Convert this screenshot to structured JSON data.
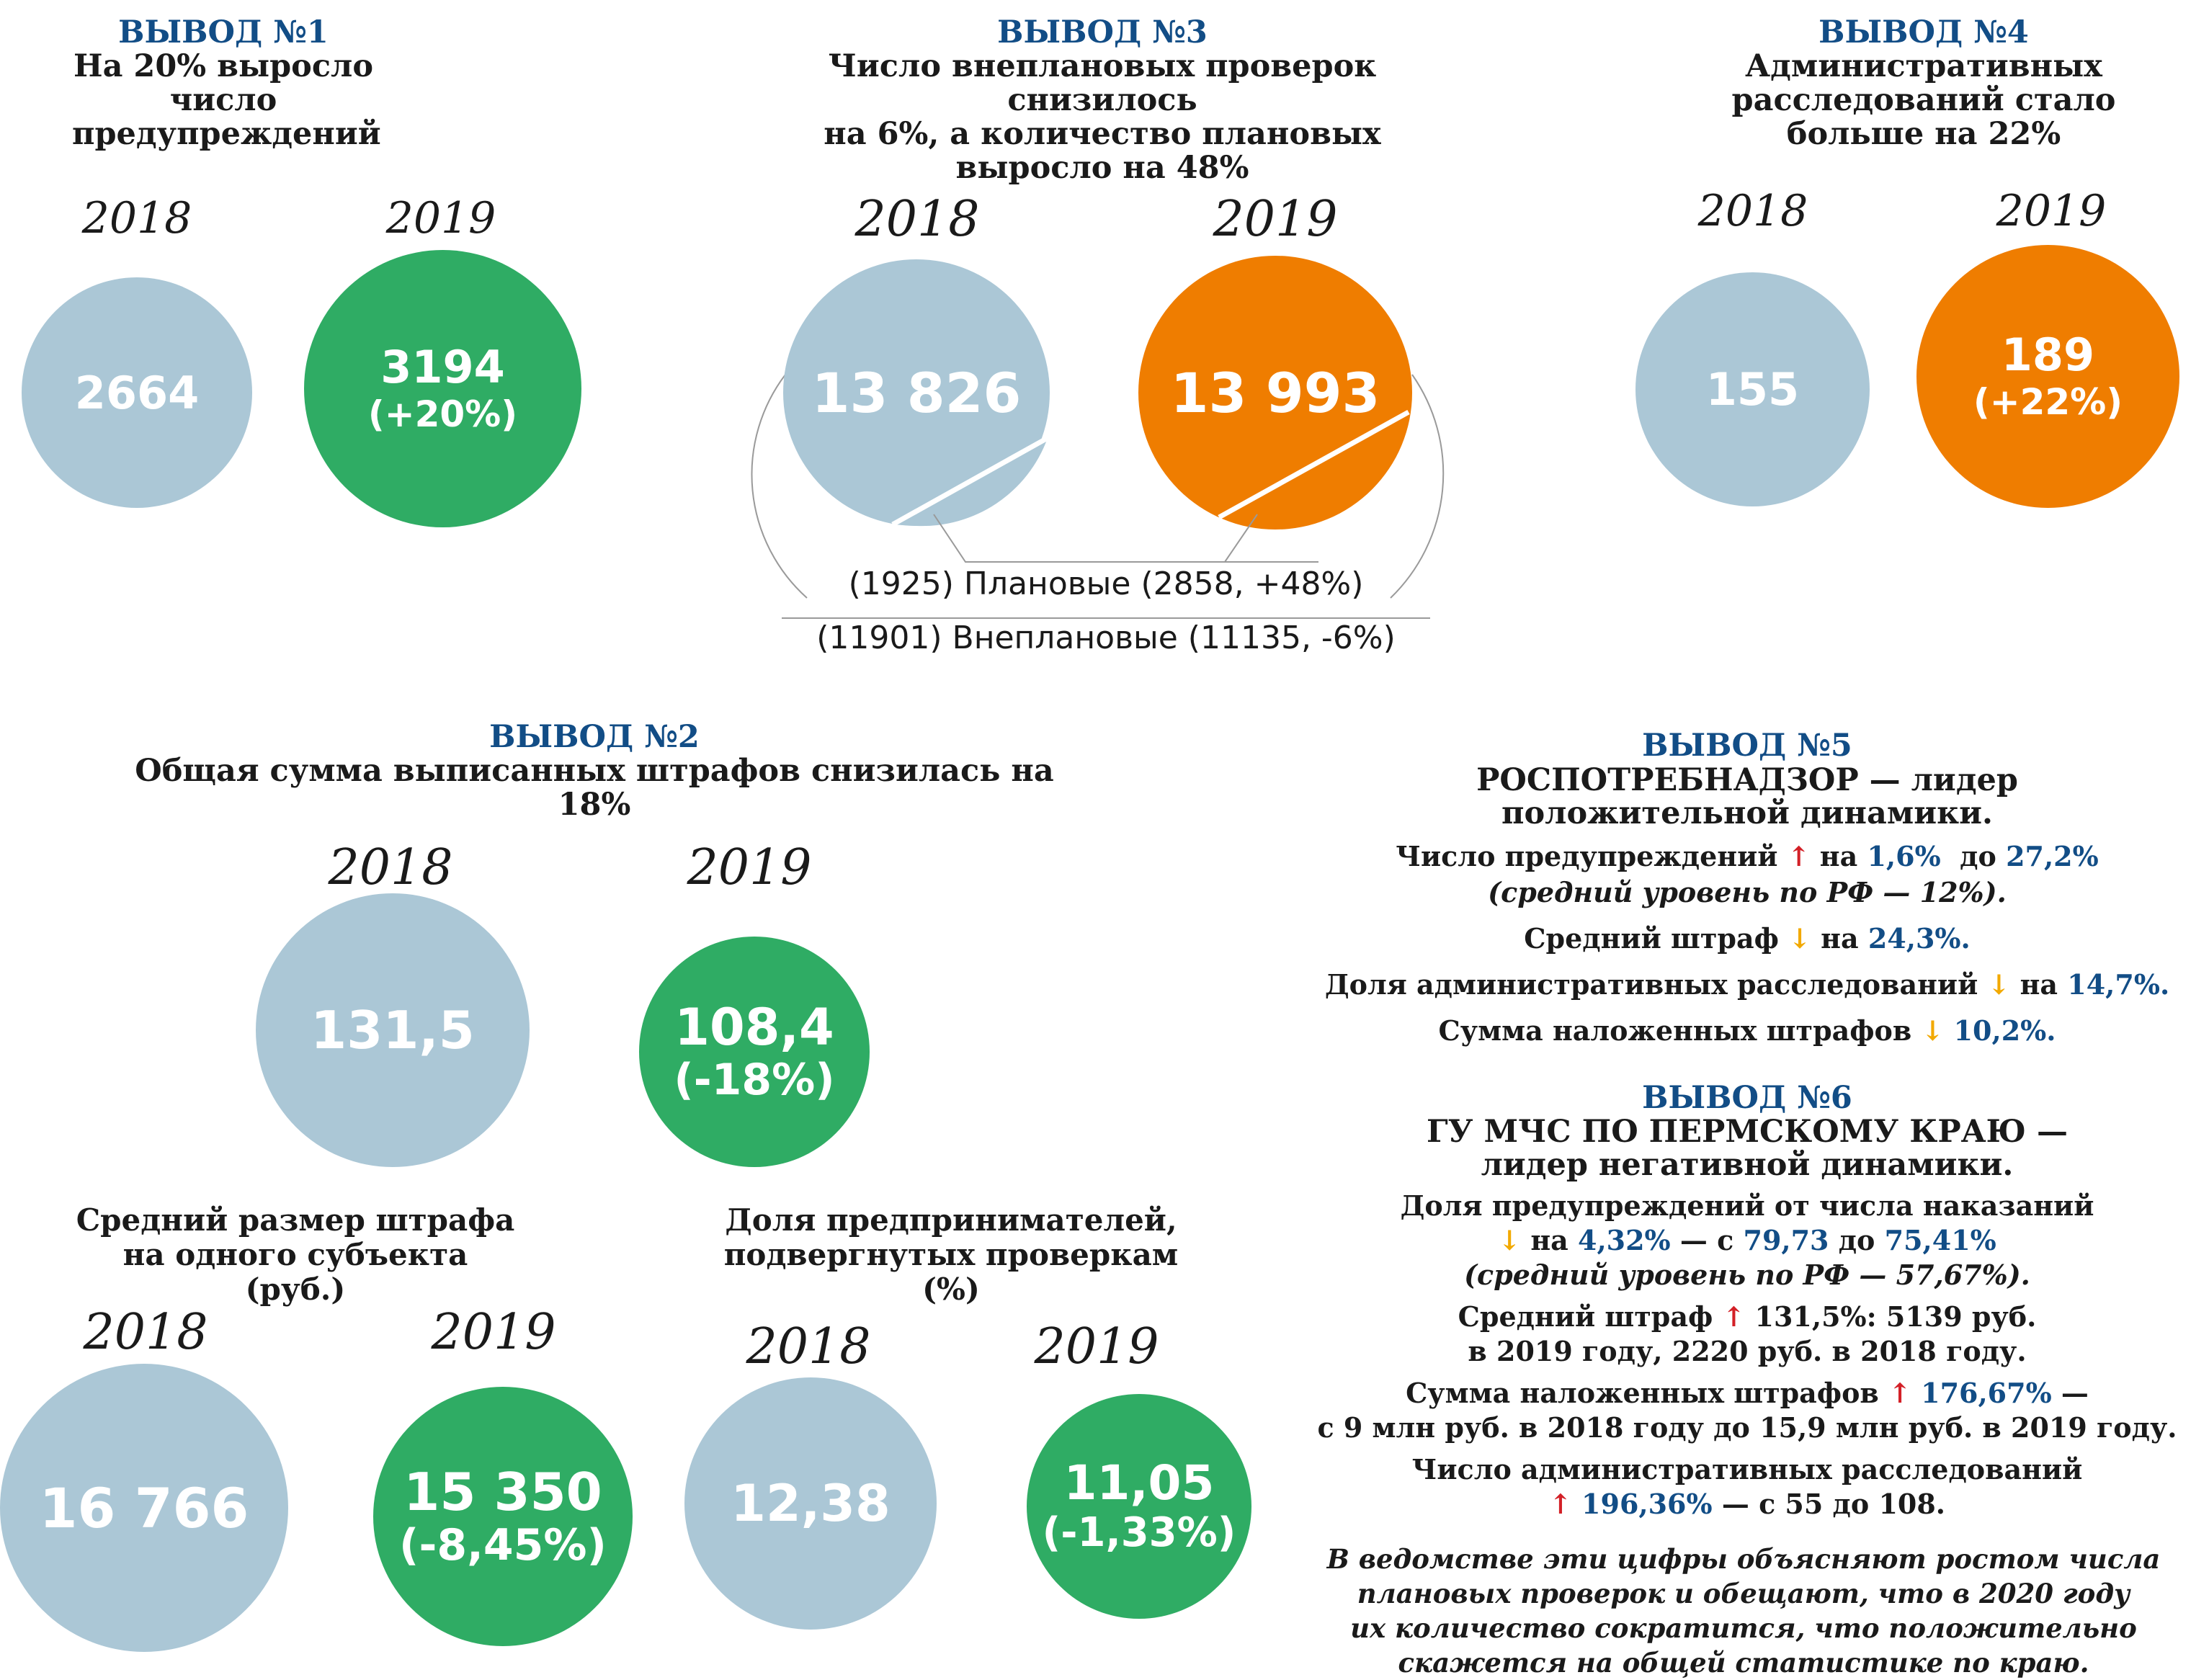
{
  "colors": {
    "base": "#abc7d6",
    "growth_green": "#2fac64",
    "growth_orange": "#ef7d00",
    "accent_blue": "#124d86",
    "up_red": "#d32027",
    "down_yellow": "#f2a900"
  },
  "chart_data": [
    {
      "type": "bubble",
      "title": "ВЫВОД №1",
      "subtitle_lines": [
        "На 20% выросло число",
        "предупреждений"
      ],
      "categories": [
        "2018",
        "2019"
      ],
      "values": [
        2664,
        3194
      ],
      "labels": [
        "2664",
        "3194"
      ],
      "change_label": "(+20%)"
    },
    {
      "type": "bubble",
      "title": "ВЫВОД №3",
      "subtitle_lines": [
        "Число внеплановых проверок снизилось",
        "на 6%, а количество плановых",
        "выросло на 48%"
      ],
      "categories": [
        "2018",
        "2019"
      ],
      "values": [
        13826,
        13993
      ],
      "labels": [
        "13 826",
        "13 993"
      ],
      "split": {
        "planned": [
          1925,
          2858
        ],
        "unplanned": [
          11901,
          11135
        ],
        "legend_planned": "(1925) Плановые (2858, +48%)",
        "legend_unplanned": "(11901) Внеплановые (11135, -6%)"
      }
    },
    {
      "type": "bubble",
      "title": "ВЫВОД №4",
      "subtitle_lines": [
        "Административных",
        "расследований стало",
        "больше на 22%"
      ],
      "categories": [
        "2018",
        "2019"
      ],
      "values": [
        155,
        189
      ],
      "labels": [
        "155",
        "189"
      ],
      "change_label": "(+22%)"
    },
    {
      "type": "bubble",
      "title": "ВЫВОД №2",
      "subtitle_lines": [
        "Общая сумма выписанных штрафов снизилась на 18%"
      ],
      "categories": [
        "2018",
        "2019"
      ],
      "values": [
        131.5,
        108.4
      ],
      "labels": [
        "131,5",
        "108,4"
      ],
      "change_label": "(-18%)"
    },
    {
      "type": "bubble",
      "subtitle_lines": [
        "Средний размер штрафа",
        "на одного субъекта (руб.)"
      ],
      "categories": [
        "2018",
        "2019"
      ],
      "values": [
        16766,
        15350
      ],
      "labels": [
        "16 766",
        "15 350"
      ],
      "change_label": "(-8,45%)"
    },
    {
      "type": "bubble",
      "subtitle_lines": [
        "Доля предпринимателей,",
        "подвергнутых проверкам (%)"
      ],
      "categories": [
        "2018",
        "2019"
      ],
      "values": [
        12.38,
        11.05
      ],
      "labels": [
        "12,38",
        "11,05"
      ],
      "change_label": "(-1,33%)"
    }
  ],
  "vyvod5": {
    "title": "ВЫВОД №5",
    "head1": "РОСПОТРЕБНАДЗОР — лидер",
    "head2": "положительной динамики.",
    "l1_a": "Число предупреждений ",
    "l1_arrow": "↑",
    "l1_b": " на ",
    "l1_v1": "1,6%",
    "l1_c": "  до ",
    "l1_v2": "27,2%",
    "l2": "(средний уровень по РФ — 12%).",
    "l3_a": "Средний штраф ",
    "l3_arrow": "↓",
    "l3_b": " на ",
    "l3_v": "24,3%.",
    "l4_a": "Доля административных расследований ",
    "l4_arrow": "↓",
    "l4_b": " на ",
    "l4_v": "14,7%.",
    "l5_a": "Сумма наложенных штрафов ",
    "l5_arrow": "↓",
    "l5_v": " 10,2%."
  },
  "vyvod6": {
    "title": "ВЫВОД №6",
    "head1": "ГУ МЧС ПО ПЕРМСКОМУ КРАЮ —",
    "head2": "лидер негативной динамики.",
    "l1": "Доля предупреждений от числа наказаний",
    "l2_arrow": "↓",
    "l2_a": " на ",
    "l2_v1": "4,32%",
    "l2_b": " — с ",
    "l2_v2": "79,73",
    "l2_c": " до ",
    "l2_v3": "75,41%",
    "l3": "(средний уровень по РФ — 57,67%).",
    "l4_a": "Средний штраф ",
    "l4_arrow": "↑",
    "l4_b": " 131,5%: 5139 руб.",
    "l5": "в 2019 году, 2220 руб. в 2018 году.",
    "l6_a": "Сумма наложенных штрафов ",
    "l6_arrow": "↑",
    "l6_v": " 176,67%",
    "l6_b": " —",
    "l7": "с 9 млн руб. в 2018 году до 15,9 млн руб. в 2019 году.",
    "l8": "Число административных расследований",
    "l9_arrow": "↑",
    "l9_v": " 196,36%",
    "l9_b": " — с 55 до 108.",
    "note": [
      "В ведомстве эти цифры объясняют ростом числа",
      "плановых проверок и обещают, что в 2020 году",
      "их количество сократится, что положительно",
      "скажется на общей статистике по краю."
    ]
  }
}
